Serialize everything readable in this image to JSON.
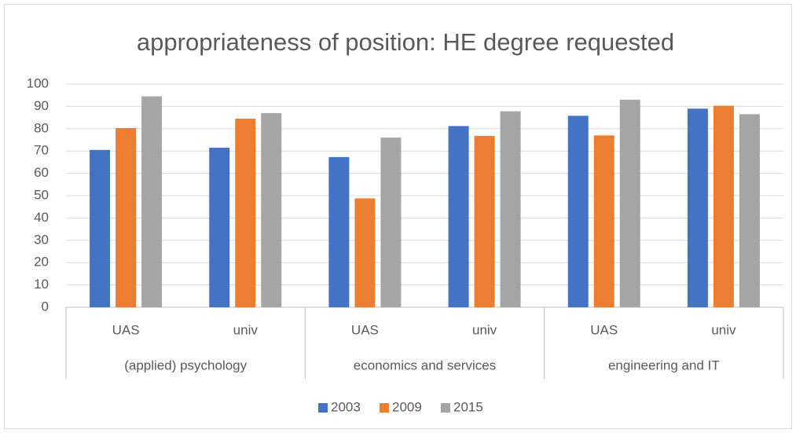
{
  "chart_data": {
    "type": "bar",
    "title": "appropriateness of position: HE degree requested",
    "categories": [
      "UAS",
      "univ",
      "UAS",
      "univ",
      "UAS",
      "univ"
    ],
    "groups": [
      "(applied) psychology",
      "economics and services",
      "engineering and IT"
    ],
    "series": [
      {
        "name": "2003",
        "color": "#4472c4",
        "values": [
          70.5,
          71.5,
          67.3,
          81.2,
          85.8,
          89
        ]
      },
      {
        "name": "2009",
        "color": "#ed7d31",
        "values": [
          80.3,
          84.5,
          48.8,
          76.8,
          77,
          90.3
        ]
      },
      {
        "name": "2015",
        "color": "#a5a5a5",
        "values": [
          94.5,
          87,
          76,
          87.8,
          93,
          86.5
        ]
      }
    ],
    "ylim": [
      0,
      100
    ],
    "yticks": [
      0,
      10,
      20,
      30,
      40,
      50,
      60,
      70,
      80,
      90,
      100
    ],
    "grid": true,
    "legend": "bottom"
  }
}
